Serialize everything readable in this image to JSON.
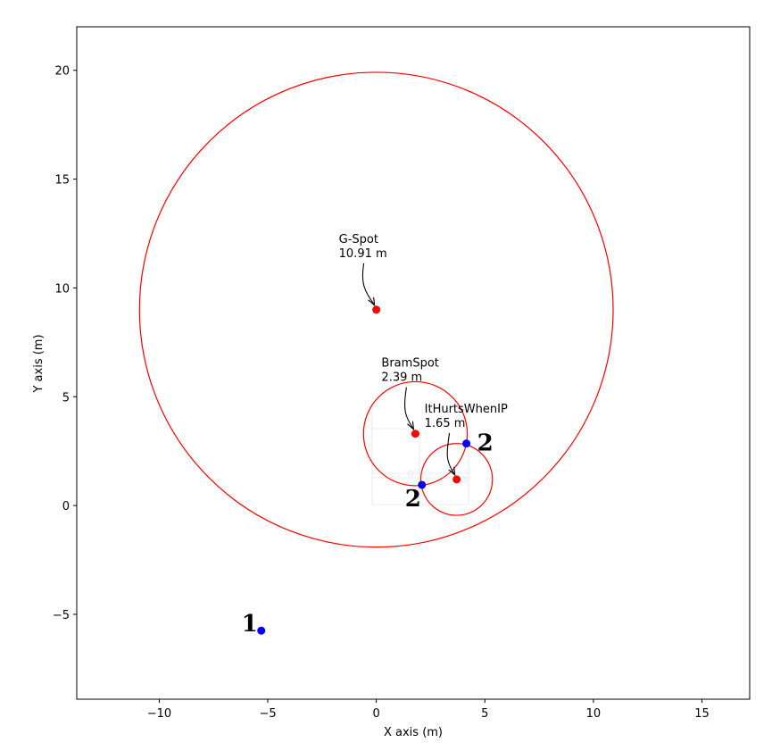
{
  "chart_data": {
    "type": "scatter",
    "title": "",
    "xlabel": "X axis (m)",
    "ylabel": "Y axis (m)",
    "xlim": [
      -13.8,
      17.2
    ],
    "ylim": [
      -8.9,
      22.0
    ],
    "x_ticks": [
      -10,
      -5,
      0,
      5,
      10,
      15
    ],
    "y_ticks": [
      -5,
      0,
      5,
      10,
      15,
      20
    ],
    "grid": false,
    "legend": "none",
    "spots": [
      {
        "name": "G-Spot",
        "radius_label": "10.91 m",
        "x": 0.0,
        "y": 9.0,
        "radius": 10.91
      },
      {
        "name": "BramSpot",
        "radius_label": "2.39 m",
        "x": 1.8,
        "y": 3.3,
        "radius": 2.39
      },
      {
        "name": "ItHurtsWhenIP",
        "radius_label": "1.65 m",
        "x": 3.7,
        "y": 1.2,
        "radius": 1.65
      }
    ],
    "markers": [
      {
        "label": "1",
        "x": -5.3,
        "y": -5.75
      },
      {
        "label": "2",
        "x": 2.1,
        "y": 0.95
      },
      {
        "label": "2",
        "x": 4.15,
        "y": 2.85
      }
    ],
    "colors": {
      "spot": "#ff0000",
      "marker": "#0000ff",
      "axes": "#000000"
    }
  }
}
